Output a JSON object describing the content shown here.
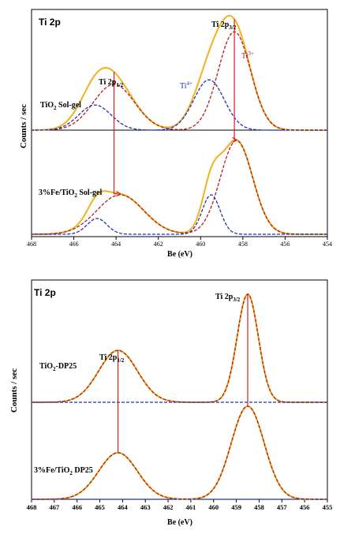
{
  "chart_data": [
    {
      "type": "line",
      "title": "Ti 2p",
      "xlabel": "Be (eV)",
      "ylabel": "Counts / sec",
      "xlim": [
        468,
        454
      ],
      "x_reversed": true,
      "xticks": [
        "468",
        "466",
        "464",
        "462",
        "460",
        "458",
        "456",
        "454"
      ],
      "grid": false,
      "colors": {
        "envelope": "#f2b21b",
        "ti3": "#b71c1c",
        "ti4": "#1f2fbf",
        "arrow": "#d62020"
      },
      "labels": {
        "ti_2p12": "Ti 2p",
        "ti_2p12_sub": "1/2",
        "ti_2p32": "Ti 2p",
        "ti_2p32_sub": "3/2",
        "ti4": "Ti",
        "ti4_sup": "4+",
        "ti3": "Ti",
        "ti3_sup": "3+"
      },
      "spectra": [
        {
          "name": "TiO2 Sol-gel",
          "name_main": "TiO",
          "name_sub": "2",
          "name_rest": " Sol-gel",
          "components": [
            {
              "type": "Ti3+",
              "color": "#b71c1c",
              "peaks": [
                {
                  "center": 458.4,
                  "height": 0.86,
                  "fwhm": 1.8
                },
                {
                  "center": 464.1,
                  "height": 0.4,
                  "fwhm": 2.3
                }
              ]
            },
            {
              "type": "Ti4+",
              "color": "#1f2fbf",
              "peaks": [
                {
                  "center": 459.6,
                  "height": 0.44,
                  "fwhm": 1.7
                },
                {
                  "center": 465.0,
                  "height": 0.22,
                  "fwhm": 1.8
                }
              ]
            }
          ]
        },
        {
          "name": "3%Fe/TiO2 Sol-gel",
          "name_main": "3%Fe/TiO",
          "name_sub": "2",
          "name_rest": " Sol-gel",
          "components": [
            {
              "type": "Ti3+",
              "color": "#b71c1c",
              "peaks": [
                {
                  "center": 458.3,
                  "height": 0.95,
                  "fwhm": 1.8
                },
                {
                  "center": 463.8,
                  "height": 0.4,
                  "fwhm": 2.6
                }
              ]
            },
            {
              "type": "Ti4+",
              "color": "#1f2fbf",
              "peaks": [
                {
                  "center": 459.5,
                  "height": 0.4,
                  "fwhm": 1.0
                },
                {
                  "center": 464.9,
                  "height": 0.16,
                  "fwhm": 1.1
                }
              ]
            }
          ]
        }
      ]
    },
    {
      "type": "line",
      "title": "Ti 2p",
      "xlabel": "Be (eV)",
      "ylabel": "Counts / sec",
      "xlim": [
        468,
        455
      ],
      "x_reversed": true,
      "xticks": [
        "468",
        "467",
        "466",
        "465",
        "464",
        "463",
        "462",
        "461",
        "460",
        "459",
        "458",
        "457",
        "456",
        "455"
      ],
      "grid": false,
      "colors": {
        "envelope": "#f2b21b",
        "fit": "#b71c1c",
        "ti4": "#1f2fbf",
        "arrow": "#d62020"
      },
      "labels": {
        "ti_2p12": "Ti 2p",
        "ti_2p12_sub": "1/2",
        "ti_2p32": "Ti 2p",
        "ti_2p32_sub": "3/2"
      },
      "spectra": [
        {
          "name": "TiO2-DP25",
          "name_main": "TiO",
          "name_sub": "2",
          "name_rest": "-DP25",
          "components": [
            {
              "type": "Ti3+",
              "color": "#b71c1c",
              "peaks": [
                {
                  "center": 458.5,
                  "height": 1.0,
                  "fwhm": 1.1
                },
                {
                  "center": 464.2,
                  "height": 0.48,
                  "fwhm": 2.0
                }
              ]
            }
          ]
        },
        {
          "name": "3%Fe/TiO2 DP25",
          "name_main": "3%Fe/TiO",
          "name_sub": "2",
          "name_rest": " DP25",
          "components": [
            {
              "type": "Ti3+",
              "color": "#b71c1c",
              "peaks": [
                {
                  "center": 458.5,
                  "height": 1.0,
                  "fwhm": 1.7
                },
                {
                  "center": 464.2,
                  "height": 0.5,
                  "fwhm": 2.0
                }
              ]
            }
          ]
        }
      ]
    }
  ]
}
